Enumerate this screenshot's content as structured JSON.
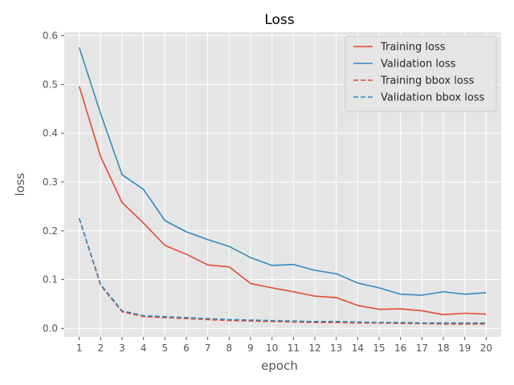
{
  "chart_data": {
    "type": "line",
    "title": "Loss",
    "xlabel": "epoch",
    "ylabel": "loss",
    "x": [
      1,
      2,
      3,
      4,
      5,
      6,
      7,
      8,
      9,
      10,
      11,
      12,
      13,
      14,
      15,
      16,
      17,
      18,
      19,
      20
    ],
    "xlim": [
      0.3,
      20.7
    ],
    "ylim": [
      -0.0175,
      0.6075
    ],
    "yticks": [
      0.0,
      0.1,
      0.2,
      0.3,
      0.4,
      0.5,
      0.6
    ],
    "grid": true,
    "legend_position": "top-right",
    "series": [
      {
        "name": "Training loss",
        "color": "#e24a33",
        "dash": "solid",
        "values": [
          0.496,
          0.352,
          0.258,
          0.216,
          0.17,
          0.152,
          0.13,
          0.126,
          0.092,
          0.083,
          0.075,
          0.066,
          0.063,
          0.047,
          0.039,
          0.04,
          0.036,
          0.028,
          0.031,
          0.029
        ]
      },
      {
        "name": "Validation loss",
        "color": "#348abd",
        "dash": "solid",
        "values": [
          0.576,
          0.44,
          0.315,
          0.285,
          0.221,
          0.198,
          0.182,
          0.168,
          0.145,
          0.129,
          0.131,
          0.119,
          0.112,
          0.093,
          0.083,
          0.07,
          0.068,
          0.075,
          0.07,
          0.073
        ]
      },
      {
        "name": "Training bbox loss",
        "color": "#e24a33",
        "dash": "dashed",
        "values": [
          0.225,
          0.088,
          0.034,
          0.024,
          0.022,
          0.02,
          0.018,
          0.016,
          0.015,
          0.014,
          0.013,
          0.012,
          0.012,
          0.011,
          0.011,
          0.01,
          0.01,
          0.009,
          0.009,
          0.009
        ]
      },
      {
        "name": "Validation bbox loss",
        "color": "#348abd",
        "dash": "dashed",
        "values": [
          0.226,
          0.09,
          0.036,
          0.026,
          0.024,
          0.022,
          0.02,
          0.018,
          0.017,
          0.016,
          0.015,
          0.014,
          0.014,
          0.013,
          0.012,
          0.012,
          0.011,
          0.011,
          0.011,
          0.011
        ]
      }
    ]
  }
}
